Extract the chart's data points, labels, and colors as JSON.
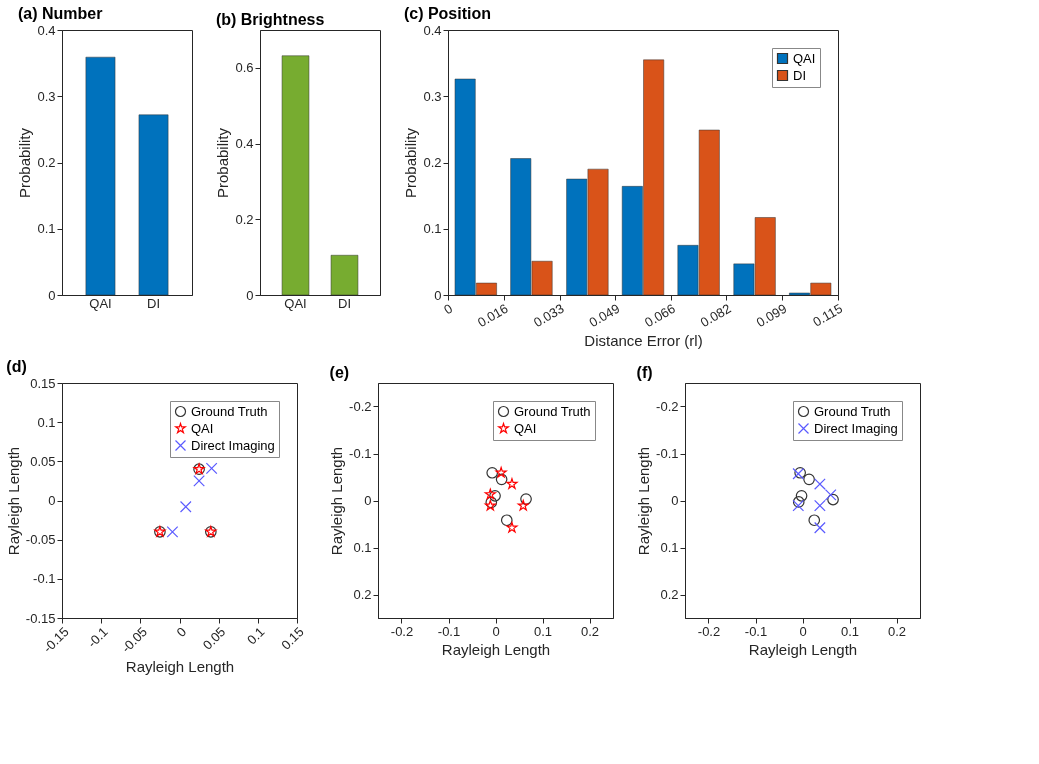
{
  "chart_data": [
    {
      "type": "bar",
      "title": "(a) Number",
      "ylabel": "Probability",
      "categories": [
        "QAI",
        "DI"
      ],
      "values": [
        0.359,
        0.272
      ],
      "color": "#0072bd",
      "ylim": [
        0,
        0.4
      ],
      "yticks": [
        0,
        0.1,
        0.2,
        0.3,
        0.4
      ],
      "grid": false
    },
    {
      "type": "bar",
      "title": "(b) Brightness",
      "ylabel": "Probability",
      "categories": [
        "QAI",
        "DI"
      ],
      "values": [
        0.632,
        0.105
      ],
      "color": "#77ac30",
      "ylim": [
        0,
        0.7
      ],
      "yticks": [
        0,
        0.2,
        0.4,
        0.6
      ],
      "grid": false
    },
    {
      "type": "bar",
      "title": "(c) Position",
      "xlabel": "Distance Error (rl)",
      "ylabel": "Probability",
      "x": [
        0.0082,
        0.0246,
        0.0411,
        0.0575,
        0.0739,
        0.0904,
        0.1068
      ],
      "series": [
        {
          "name": "QAI",
          "color": "#0072bd",
          "values": [
            0.326,
            0.206,
            0.175,
            0.164,
            0.075,
            0.047,
            0.003
          ]
        },
        {
          "name": "DI",
          "color": "#d95319",
          "values": [
            0.018,
            0.051,
            0.19,
            0.355,
            0.249,
            0.117,
            0.018
          ]
        }
      ],
      "xlim": [
        0,
        0.115
      ],
      "xticks": [
        0,
        {
          "value": 0.0164,
          "label": "0.016"
        },
        {
          "value": 0.0329,
          "label": "0.033"
        },
        {
          "value": 0.0493,
          "label": "0.049"
        },
        {
          "value": 0.0657,
          "label": "0.066"
        },
        {
          "value": 0.0821,
          "label": "0.082"
        },
        {
          "value": 0.0986,
          "label": "0.099"
        },
        0.115
      ],
      "ylim": [
        0,
        0.4
      ],
      "yticks": [
        0,
        0.1,
        0.2,
        0.3,
        0.4
      ],
      "legend": "top right",
      "grid": false
    },
    {
      "type": "scatter",
      "title": "(d)",
      "xlabel": "Rayleigh Length",
      "ylabel": "Rayleigh Length",
      "series": [
        {
          "name": "Ground Truth",
          "color": "#333333",
          "marker": "circle",
          "x": [
            -0.025,
            0.025,
            0.04
          ],
          "values": [
            -0.04,
            0.04,
            -0.04
          ]
        },
        {
          "name": "QAI",
          "color": "#ff0000",
          "marker": "star",
          "x": [
            -0.025,
            0.025,
            0.04
          ],
          "values": [
            -0.04,
            0.04,
            -0.04
          ]
        },
        {
          "name": "Direct Imaging",
          "color": "#5a5aff",
          "marker": "cross",
          "x": [
            0.041,
            0.025,
            0.008,
            -0.009
          ],
          "values": [
            0.041,
            0.025,
            -0.008,
            -0.04
          ]
        }
      ],
      "xlim": [
        -0.15,
        0.15
      ],
      "xticks": [
        -0.15,
        -0.1,
        -0.05,
        0,
        0.05,
        0.1,
        0.15
      ],
      "ylim": [
        -0.15,
        0.15
      ],
      "yticks": [
        -0.15,
        -0.1,
        -0.05,
        0,
        0.05,
        0.1,
        0.15
      ],
      "legend": "top right",
      "grid": false
    },
    {
      "type": "scatter",
      "title": "(e)",
      "xlabel": "Rayleigh Length",
      "ylabel": "Rayleigh Length",
      "series": [
        {
          "name": "Ground Truth",
          "color": "#333333",
          "marker": "circle",
          "x": [
            -0.007,
            0.013,
            -0.001,
            -0.009,
            0.065,
            0.024
          ],
          "values": [
            -0.059,
            -0.045,
            -0.01,
            0.004,
            -0.003,
            0.042
          ]
        },
        {
          "name": "QAI",
          "color": "#ff0000",
          "marker": "star",
          "x": [
            0.012,
            0.035,
            -0.011,
            -0.011,
            0.059,
            0.035
          ],
          "values": [
            -0.059,
            -0.035,
            -0.013,
            0.011,
            0.011,
            0.058
          ]
        }
      ],
      "xlim": [
        -0.25,
        0.25
      ],
      "xticks": [
        -0.2,
        -0.1,
        0,
        0.1,
        0.2
      ],
      "ylim": [
        0.25,
        -0.25
      ],
      "yticks": [
        -0.2,
        -0.1,
        0,
        0.1,
        0.2
      ],
      "legend": "top right",
      "grid": false
    },
    {
      "type": "scatter",
      "title": "(f)",
      "xlabel": "Rayleigh Length",
      "ylabel": "Rayleigh Length",
      "series": [
        {
          "name": "Ground Truth",
          "color": "#333333",
          "marker": "circle",
          "x": [
            -0.005,
            0.014,
            -0.002,
            -0.008,
            0.065,
            0.025
          ],
          "values": [
            -0.059,
            -0.045,
            -0.01,
            0.003,
            -0.002,
            0.042
          ]
        },
        {
          "name": "Direct Imaging",
          "color": "#5a5aff",
          "marker": "cross",
          "x": [
            -0.009,
            0.037,
            0.06,
            0.037,
            -0.009,
            0.037
          ],
          "values": [
            -0.057,
            -0.035,
            -0.012,
            0.011,
            0.011,
            0.058
          ]
        }
      ],
      "xlim": [
        -0.25,
        0.25
      ],
      "xticks": [
        -0.2,
        -0.1,
        0,
        0.1,
        0.2
      ],
      "ylim": [
        0.25,
        -0.25
      ],
      "yticks": [
        -0.2,
        -0.1,
        0,
        0.1,
        0.2
      ],
      "legend": "top right",
      "grid": false
    }
  ]
}
